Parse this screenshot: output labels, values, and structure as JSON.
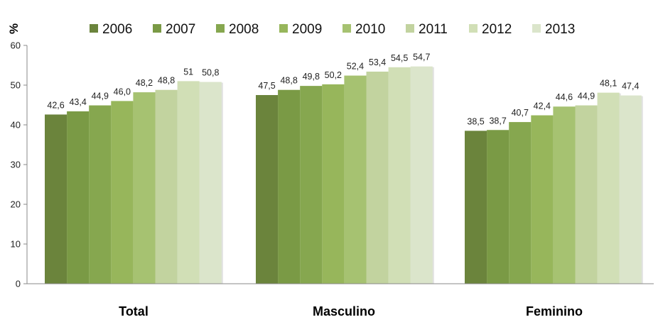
{
  "chart_data": {
    "type": "bar",
    "title": "",
    "ylabel": "%",
    "xlabel": "",
    "ylim": [
      0,
      60
    ],
    "yticks": [
      0,
      10,
      20,
      30,
      40,
      50,
      60
    ],
    "grid": false,
    "legend_position": "top",
    "categories": [
      "Total",
      "Masculino",
      "Feminino"
    ],
    "series": [
      {
        "name": "2006",
        "color": "#6b843c",
        "values": [
          42.6,
          47.5,
          38.5
        ],
        "labels": [
          "42,6",
          "47,5",
          "38,5"
        ]
      },
      {
        "name": "2007",
        "color": "#7a9a45",
        "values": [
          43.4,
          48.8,
          38.7
        ],
        "labels": [
          "43,4",
          "48,8",
          "38,7"
        ]
      },
      {
        "name": "2008",
        "color": "#86a74f",
        "values": [
          44.9,
          49.8,
          40.7
        ],
        "labels": [
          "44,9",
          "49,8",
          "40,7"
        ]
      },
      {
        "name": "2009",
        "color": "#97b65b",
        "values": [
          46.0,
          50.2,
          42.4
        ],
        "labels": [
          "46,0",
          "50,2",
          "42,4"
        ]
      },
      {
        "name": "2010",
        "color": "#a6c271",
        "values": [
          48.2,
          52.4,
          44.6
        ],
        "labels": [
          "48,2",
          "52,4",
          "44,6"
        ]
      },
      {
        "name": "2011",
        "color": "#c2d39f",
        "values": [
          48.8,
          53.4,
          44.9
        ],
        "labels": [
          "48,8",
          "53,4",
          "44,9"
        ]
      },
      {
        "name": "2012",
        "color": "#d1dfb6",
        "values": [
          51,
          54.5,
          48.1
        ],
        "labels": [
          "51",
          "54,5",
          "48,1"
        ]
      },
      {
        "name": "2013",
        "color": "#dbe5cb",
        "values": [
          50.8,
          54.7,
          47.4
        ],
        "labels": [
          "50,8",
          "54,7",
          "47,4"
        ]
      }
    ]
  }
}
